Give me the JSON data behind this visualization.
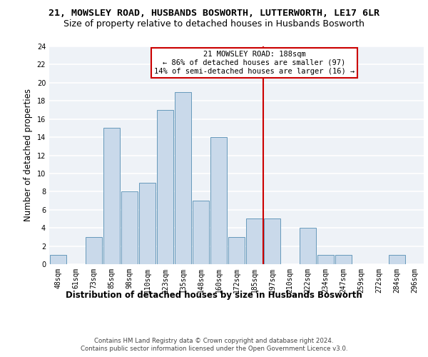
{
  "title": "21, MOWSLEY ROAD, HUSBANDS BOSWORTH, LUTTERWORTH, LE17 6LR",
  "subtitle": "Size of property relative to detached houses in Husbands Bosworth",
  "xlabel": "Distribution of detached houses by size in Husbands Bosworth",
  "ylabel": "Number of detached properties",
  "footer1": "Contains HM Land Registry data © Crown copyright and database right 2024.",
  "footer2": "Contains public sector information licensed under the Open Government Licence v3.0.",
  "bar_labels": [
    "48sqm",
    "61sqm",
    "73sqm",
    "85sqm",
    "98sqm",
    "110sqm",
    "123sqm",
    "135sqm",
    "148sqm",
    "160sqm",
    "172sqm",
    "185sqm",
    "197sqm",
    "210sqm",
    "222sqm",
    "234sqm",
    "247sqm",
    "259sqm",
    "272sqm",
    "284sqm",
    "296sqm"
  ],
  "bar_values": [
    1,
    0,
    3,
    15,
    8,
    9,
    17,
    19,
    7,
    14,
    3,
    5,
    5,
    0,
    4,
    1,
    1,
    0,
    0,
    1,
    0
  ],
  "bar_color": "#c9d9ea",
  "bar_edge_color": "#6699bb",
  "ylim": [
    0,
    24
  ],
  "yticks": [
    0,
    2,
    4,
    6,
    8,
    10,
    12,
    14,
    16,
    18,
    20,
    22,
    24
  ],
  "vline_position": 11.5,
  "bg_color": "#eef2f7",
  "grid_color": "#ffffff",
  "annotation_box_color": "#cc0000",
  "property_name": "21 MOWSLEY ROAD: 188sqm",
  "annotation_line1": "← 86% of detached houses are smaller (97)",
  "annotation_line2": "14% of semi-detached houses are larger (16) →",
  "title_fontsize": 9.5,
  "subtitle_fontsize": 9,
  "ylabel_fontsize": 8.5,
  "tick_fontsize": 7,
  "annotation_fontsize": 7.5,
  "xlabel_fontsize": 8.5,
  "footer_fontsize": 6.2
}
